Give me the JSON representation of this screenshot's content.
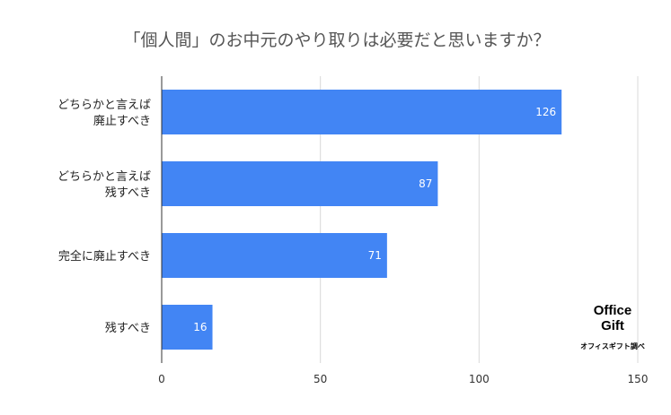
{
  "chart_data": {
    "type": "bar",
    "orientation": "horizontal",
    "title": "「個人間」のお中元のやり取りは必要だと思いますか？",
    "categories": [
      [
        "どちらかと言えば",
        "廃止すべき"
      ],
      [
        "どちらかと言えば",
        "残すべき"
      ],
      [
        "完全に廃止すべき"
      ],
      [
        "残すべき"
      ]
    ],
    "values": [
      126,
      87,
      71,
      16
    ],
    "xlim": [
      0,
      150
    ],
    "xticks": [
      0,
      50,
      100,
      150
    ],
    "grid": true,
    "bar_color": "#4285f4",
    "value_labels_inside": true
  },
  "logo": {
    "line1": "Office",
    "line2": "Gift",
    "caption": "オフィスギフト調べ"
  }
}
